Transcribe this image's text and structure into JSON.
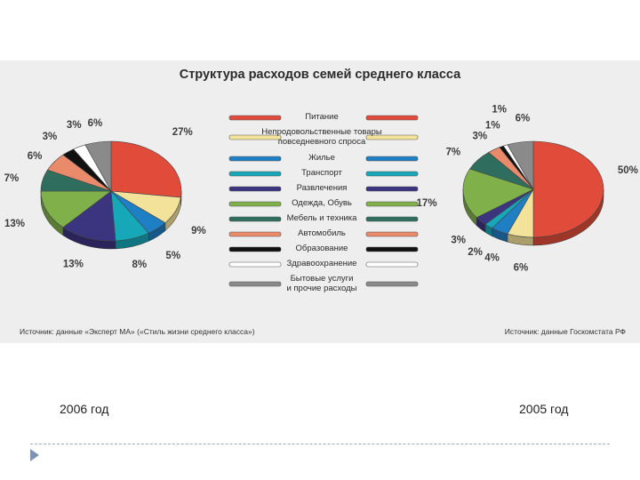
{
  "title": "Структура расходов семей среднего класса",
  "source_left": "Источник: данные «Эксперт МА» («Стиль жизни среднего класса»)",
  "source_right": "Источник: данные Госкомстата РФ",
  "year_left": "2006 год",
  "year_right": "2005 год",
  "chart_data": [
    {
      "type": "pie",
      "caption": "2006 год",
      "categories": [
        "Питание",
        "Непродовольственные товары повседневного спроса",
        "Жилье",
        "Транспорт",
        "Развлечения",
        "Одежда, обувь",
        "Мебель и техника",
        "Автомобиль",
        "Образование",
        "Здравоохранение",
        "Бытовые услуги и прочие расходы"
      ],
      "values": [
        27,
        9,
        5,
        8,
        13,
        13,
        7,
        6,
        3,
        3,
        6
      ],
      "labels": [
        "27%",
        "9%",
        "5%",
        "8%",
        "13%",
        "13%",
        "7%",
        "6%",
        "3%",
        "3%",
        "6%"
      ]
    },
    {
      "type": "pie",
      "caption": "2005 год",
      "categories": [
        "Питание",
        "Непродовольственные товары повседневного спроса",
        "Жилье",
        "Транспорт",
        "Развлечения",
        "Одежда, обувь",
        "Мебель и техника",
        "Автомобиль",
        "Образование",
        "Здравоохранение",
        "Бытовые услуги и прочие расходы"
      ],
      "values": [
        50,
        6,
        4,
        2,
        3,
        17,
        7,
        3,
        1,
        1,
        6
      ],
      "labels": [
        "50%",
        "6%",
        "4%",
        "2%",
        "3%",
        "17%",
        "7%",
        "3%",
        "1%",
        "1%",
        "6%"
      ]
    }
  ],
  "legend": [
    {
      "lines": [
        "Питание"
      ],
      "color": "#e04b3a"
    },
    {
      "lines": [
        "Непродовольственные товары",
        "повседневного спроса"
      ],
      "color": "#f3e29a"
    },
    {
      "lines": [
        "Жилье"
      ],
      "color": "#1f7fc4"
    },
    {
      "lines": [
        "Транспорт"
      ],
      "color": "#16a8b8"
    },
    {
      "lines": [
        "Развлечения"
      ],
      "color": "#3b3580"
    },
    {
      "lines": [
        "Одежда, Обувь"
      ],
      "color": "#7fb04a"
    },
    {
      "lines": [
        "Мебель и техника"
      ],
      "color": "#2f6e5e"
    },
    {
      "lines": [
        "Автомобиль"
      ],
      "color": "#e98a6a"
    },
    {
      "lines": [
        "Образование"
      ],
      "color": "#111111"
    },
    {
      "lines": [
        "Здравоохранение"
      ],
      "color": "#ffffff"
    },
    {
      "lines": [
        "Бытовые услуги",
        "и прочие расходы"
      ],
      "color": "#8a8a8a"
    }
  ]
}
